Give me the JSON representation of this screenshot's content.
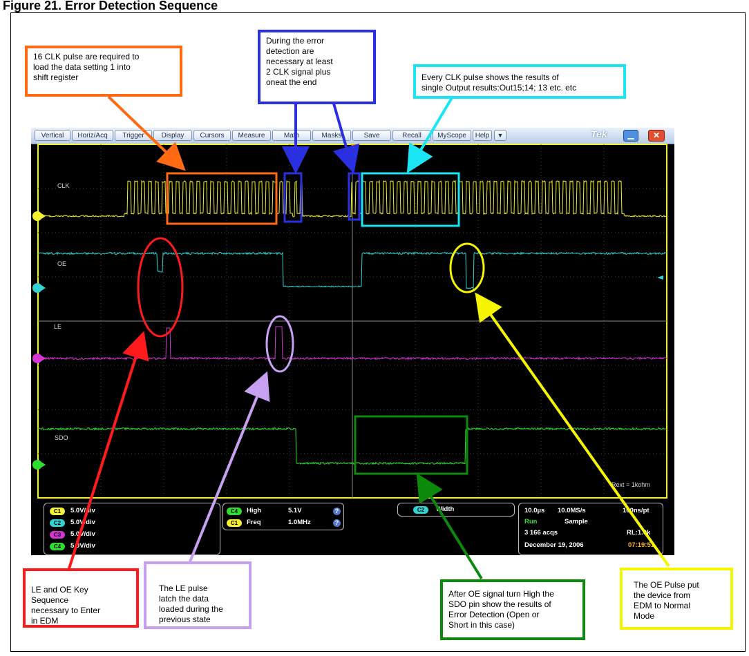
{
  "title": "Figure 21. Error Detection Sequence",
  "menu": {
    "items": [
      "Vertical",
      "Horiz/Acq",
      "Trigger",
      "Display",
      "Cursors",
      "Measure",
      "Math",
      "Masks",
      "Save",
      "Recall",
      "MyScope",
      "Help"
    ],
    "dropdown_glyph": "▼",
    "brand": "Tek",
    "minimize_glyph": "▁",
    "close_glyph": "✕"
  },
  "screen": {
    "channel_labels": {
      "clk": "CLK",
      "oe": "OE",
      "le": "LE",
      "sdo": "SDO"
    },
    "annotation_text": "Rext = 1kohm",
    "colors": {
      "ch1": "#f4f032",
      "ch2": "#32d3d3",
      "ch3": "#d335d3",
      "ch4": "#2ede2e",
      "grid": "#5a5a5a"
    }
  },
  "readouts": {
    "channels": [
      {
        "chip": "C1",
        "scale": "5.0V/div"
      },
      {
        "chip": "C2",
        "scale": "5.0V/div"
      },
      {
        "chip": "C3",
        "scale": "5.0V/div"
      },
      {
        "chip": "C4",
        "scale": "5.0V/div"
      }
    ],
    "measurements": [
      {
        "chip": "C4",
        "name": "High",
        "value": "5.1V"
      },
      {
        "chip": "C1",
        "name": "Freq",
        "value": "1.0MHz"
      }
    ],
    "width": {
      "chip": "C2",
      "name": "Width"
    },
    "acquisition": {
      "timebase": "10.0µs",
      "sample_rate": "10.0MS/s",
      "points": "100ns/pt",
      "state": "Run",
      "mode": "Sample",
      "acqs": "3 166 acqs",
      "record_length": "RL:1.0k",
      "date": "December 19, 2006",
      "time": "07:19:51"
    }
  },
  "callouts": {
    "clk16": [
      "16 CLK pulse are required to",
      "load the data setting 1 into",
      "shift register"
    ],
    "error_detection": [
      "During the error",
      "detection are",
      "necessary  at least",
      "2 CLK signal plus",
      "oneat the end"
    ],
    "every_clk": [
      "Every CLK pulse shows the results of",
      "single Output results:Out15;14; 13 etc. etc"
    ],
    "le_oe": [
      "LE and OE Key",
      "Sequence",
      "necessary to Enter",
      "in EDM"
    ],
    "le_pulse": [
      "The LE pulse",
      "latch the data",
      "loaded during the",
      "previous state"
    ],
    "sdo_results": [
      "After OE signal turn High the",
      "SDO pin show the results of",
      "Error Detection (Open or",
      "Short in this case)"
    ],
    "oe_pulse": [
      "The OE Pulse put",
      "the device from",
      "EDM to Normal",
      "Mode"
    ]
  },
  "callout_colors": {
    "orange": "#ff6a13",
    "blue": "#2a30e0",
    "cyan": "#19e5f5",
    "red": "#ff1b1b",
    "lavender": "#c8a0f2",
    "green": "#0b8a0b",
    "yellow": "#f5f500"
  }
}
